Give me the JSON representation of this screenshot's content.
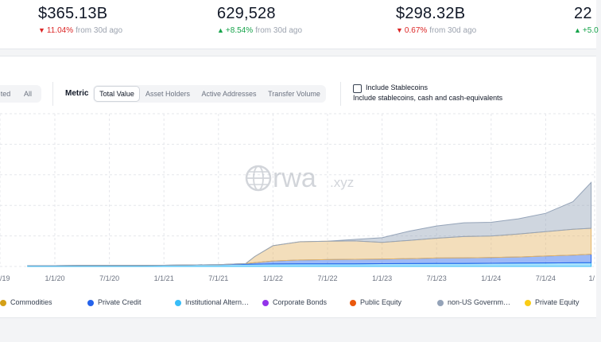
{
  "stats": [
    {
      "value": "$365.13B",
      "direction": "down",
      "change": "11.04%",
      "suffix": "from 30d ago"
    },
    {
      "value": "629,528",
      "direction": "up",
      "change": "+8.54%",
      "suffix": "from 30d ago"
    },
    {
      "value": "$298.32B",
      "direction": "down",
      "change": "0.67%",
      "suffix": "from 30d ago"
    },
    {
      "value": "22",
      "direction": "up",
      "change": "+5.0",
      "suffix": ""
    }
  ],
  "controls": {
    "range_options": [
      {
        "label": "ted",
        "active": false
      },
      {
        "label": "All",
        "active": false
      }
    ],
    "metric_label": "Metric",
    "metric_options": [
      {
        "label": "Total Value",
        "active": true
      },
      {
        "label": "Asset Holders",
        "active": false
      },
      {
        "label": "Active Addresses",
        "active": false
      },
      {
        "label": "Transfer Volume",
        "active": false
      }
    ],
    "stablecoins": {
      "checked": false,
      "label": "Include Stablecoins",
      "sublabel": "Include stablecoins, cash and cash-equivalents"
    }
  },
  "watermark": {
    "brand": "rwa",
    "suffix": ".xyz"
  },
  "chart_data": {
    "type": "area",
    "stacked": true,
    "x": [
      "2019-10",
      "2020-01",
      "2020-04",
      "2020-07",
      "2020-10",
      "2021-01",
      "2021-04",
      "2021-07",
      "2021-10",
      "2021-11",
      "2022-01",
      "2022-04",
      "2022-07",
      "2022-10",
      "2023-01",
      "2023-04",
      "2023-07",
      "2023-10",
      "2024-01",
      "2024-04",
      "2024-07",
      "2024-10",
      "2024-12"
    ],
    "x_tick_labels": [
      "/19",
      "1/1/20",
      "7/1/20",
      "1/1/21",
      "7/1/21",
      "1/1/22",
      "7/1/22",
      "1/1/23",
      "7/1/23",
      "1/1/24",
      "7/1/24",
      "1/"
    ],
    "ylim": [
      0,
      100
    ],
    "grid": true,
    "legend_position": "bottom",
    "series": [
      {
        "name": "Institutional Altern…",
        "color": "#38bdf8",
        "values": [
          0.5,
          0.5,
          0.6,
          0.6,
          0.7,
          0.8,
          1.0,
          1.2,
          1.4,
          1.5,
          1.6,
          1.7,
          1.7,
          1.7,
          1.8,
          1.9,
          2.0,
          2.0,
          2.1,
          2.2,
          2.3,
          2.4,
          2.5
        ]
      },
      {
        "name": "Private Credit",
        "color": "#2563eb",
        "values": [
          0,
          0,
          0,
          0,
          0,
          0,
          0,
          0,
          0.5,
          1,
          2,
          2.5,
          2.8,
          3,
          3,
          3.2,
          3.5,
          3.6,
          3.8,
          4,
          4.5,
          5,
          5.5
        ]
      },
      {
        "name": "Commodities",
        "color": "#e4b568",
        "values": [
          0,
          0,
          0,
          0,
          0,
          0,
          0,
          0,
          0,
          4,
          10,
          12,
          12,
          12,
          11,
          12,
          13,
          14,
          14,
          15,
          16,
          17,
          17
        ]
      },
      {
        "name": "non-US Governme…",
        "color": "#94a3b8",
        "values": [
          0,
          0,
          0,
          0,
          0,
          0,
          0,
          0,
          0,
          0,
          0,
          0,
          0,
          1,
          3,
          6,
          8,
          9,
          9,
          10,
          12,
          18,
          30
        ]
      },
      {
        "name": "Corporate Bonds",
        "color": "#9333ea",
        "values": [
          0,
          0,
          0,
          0,
          0,
          0,
          0,
          0,
          0,
          0,
          0,
          0,
          0,
          0,
          0,
          0,
          0,
          0,
          0,
          0,
          0,
          0,
          0
        ]
      },
      {
        "name": "Public Equity",
        "color": "#ea580c",
        "values": [
          0,
          0,
          0,
          0,
          0,
          0,
          0,
          0,
          0,
          0,
          0,
          0,
          0,
          0,
          0,
          0,
          0,
          0,
          0,
          0,
          0,
          0,
          0
        ]
      },
      {
        "name": "Private Equity",
        "color": "#facc15",
        "values": [
          0,
          0,
          0,
          0,
          0,
          0,
          0,
          0,
          0,
          0,
          0,
          0,
          0,
          0,
          0,
          0,
          0,
          0,
          0,
          0,
          0,
          0,
          0
        ]
      }
    ]
  },
  "legend": [
    {
      "name": "Commodities",
      "color": "#d4a017"
    },
    {
      "name": "Private Credit",
      "color": "#2563eb"
    },
    {
      "name": "Institutional Altern…",
      "color": "#38bdf8"
    },
    {
      "name": "Corporate Bonds",
      "color": "#9333ea"
    },
    {
      "name": "Public Equity",
      "color": "#ea580c"
    },
    {
      "name": "non-US Governm…",
      "color": "#94a3b8"
    },
    {
      "name": "Private Equity",
      "color": "#facc15"
    }
  ]
}
